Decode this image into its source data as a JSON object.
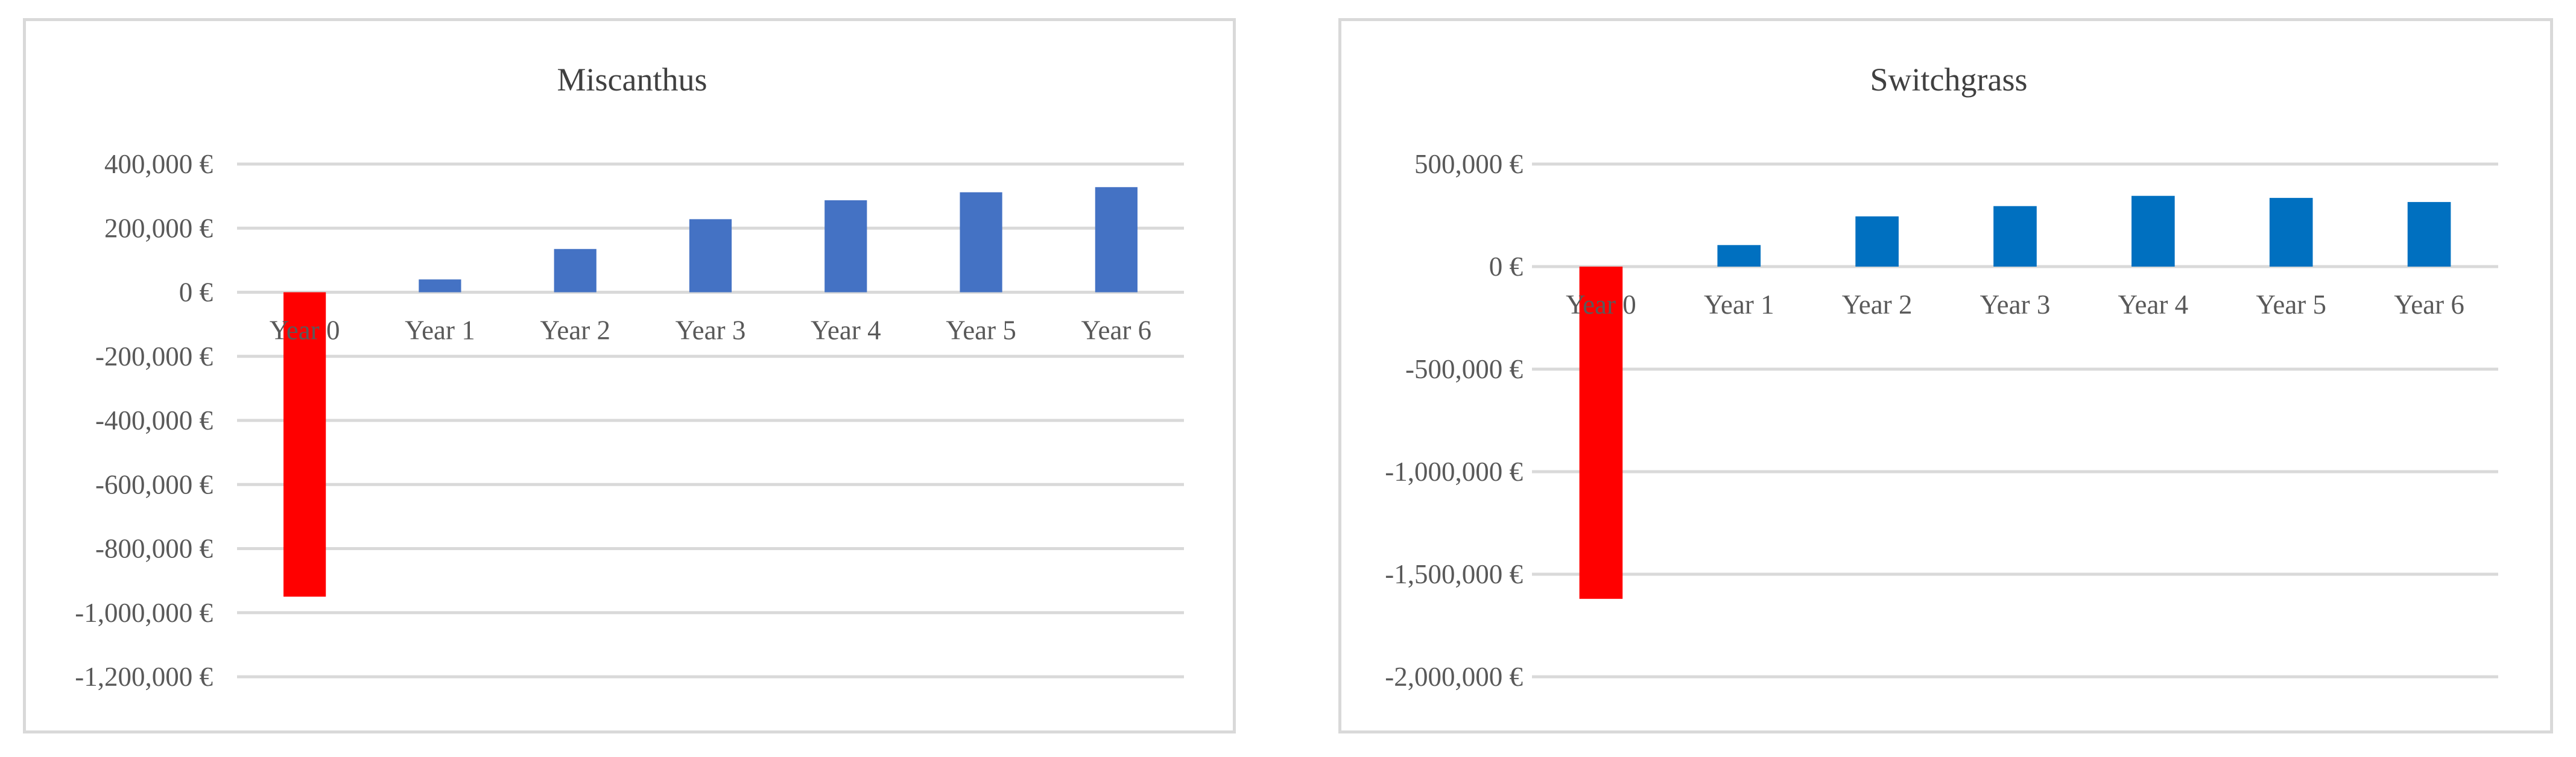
{
  "chart_data": [
    {
      "type": "bar",
      "title": "Miscanthus",
      "categories": [
        "Year 0",
        "Year 1",
        "Year 2",
        "Year 3",
        "Year 4",
        "Year 5",
        "Year 6"
      ],
      "values": [
        -950000,
        40000,
        135000,
        228000,
        287000,
        312000,
        328000
      ],
      "bar_colors": [
        "#ff0000",
        "#4472c4",
        "#4472c4",
        "#4472c4",
        "#4472c4",
        "#4472c4",
        "#4472c4"
      ],
      "ylim": [
        -1200000,
        400000
      ],
      "yticks": [
        400000,
        200000,
        0,
        -200000,
        -400000,
        -600000,
        -800000,
        -1000000,
        -1200000
      ],
      "ytick_labels": [
        "400,000 €",
        "200,000 €",
        "0 €",
        "-200,000 €",
        "-400,000 €",
        "-600,000 €",
        "-800,000 €",
        "-1,000,000 €",
        "-1,200,000 €"
      ],
      "grid": true,
      "xlabel": "",
      "ylabel": ""
    },
    {
      "type": "bar",
      "title": "Switchgrass",
      "categories": [
        "Year 0",
        "Year 1",
        "Year 2",
        "Year 3",
        "Year 4",
        "Year 5",
        "Year 6"
      ],
      "values": [
        -1620000,
        105000,
        245000,
        295000,
        345000,
        335000,
        315000
      ],
      "bar_colors": [
        "#ff0000",
        "#0070c0",
        "#0070c0",
        "#0070c0",
        "#0070c0",
        "#0070c0",
        "#0070c0"
      ],
      "ylim": [
        -2000000,
        500000
      ],
      "yticks": [
        500000,
        0,
        -500000,
        -1000000,
        -1500000,
        -2000000
      ],
      "ytick_labels": [
        "500,000 €",
        "0 €",
        "-500,000 €",
        "-1,000,000 €",
        "-1,500,000 €",
        "-2,000,000 €"
      ],
      "grid": true,
      "xlabel": "",
      "ylabel": ""
    }
  ]
}
